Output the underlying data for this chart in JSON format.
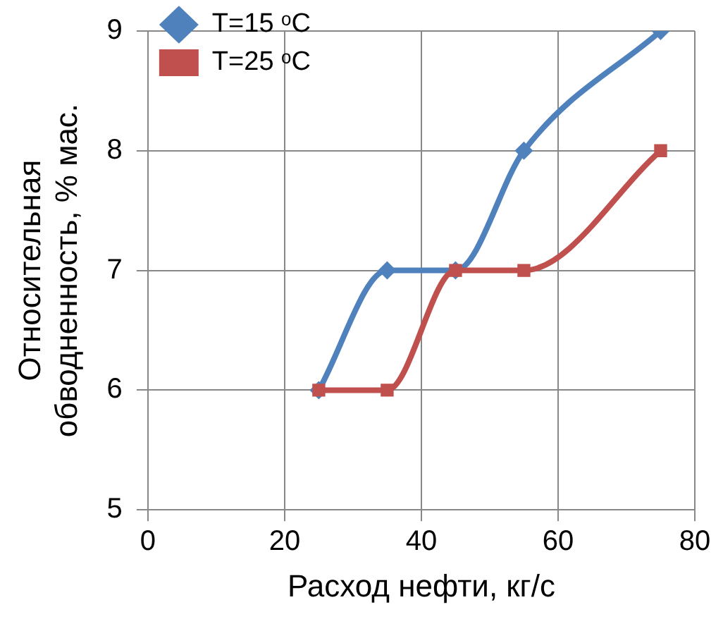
{
  "chart_data": {
    "type": "line",
    "xlabel": "Расход нефти, кг/с",
    "ylabel": "Относительная обводненность, % мас.",
    "xlim": [
      0,
      80
    ],
    "xticks": [
      0,
      20,
      40,
      60,
      80
    ],
    "ylim": [
      5,
      9
    ],
    "yticks": [
      5,
      6,
      7,
      8,
      9
    ],
    "grid": true,
    "legend": "top left",
    "line_style": "solid",
    "series": [
      {
        "name": "T=15 ᵒC",
        "color": "#4f81bd",
        "marker": "diamond",
        "x": [
          25,
          35,
          45,
          55,
          75
        ],
        "values": [
          6,
          7,
          7,
          8,
          9
        ]
      },
      {
        "name": "T=25 ᵒC",
        "color": "#c0504d",
        "marker": "square",
        "x": [
          25,
          35,
          45,
          55,
          75
        ],
        "values": [
          6,
          6,
          7,
          7,
          8
        ]
      }
    ]
  }
}
